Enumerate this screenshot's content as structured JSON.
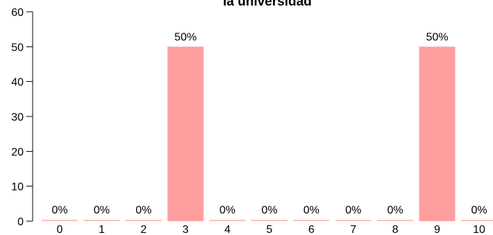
{
  "chart_data": {
    "type": "bar",
    "title": "la universidad",
    "xlabel": "",
    "ylabel": "",
    "categories": [
      "0",
      "1",
      "2",
      "3",
      "4",
      "5",
      "6",
      "7",
      "8",
      "9",
      "10"
    ],
    "values": [
      0,
      0,
      0,
      50,
      0,
      0,
      0,
      0,
      0,
      50,
      0
    ],
    "data_labels": [
      "0%",
      "0%",
      "0%",
      "50%",
      "0%",
      "0%",
      "0%",
      "0%",
      "0%",
      "50%",
      "0%"
    ],
    "ylim": [
      0,
      60
    ],
    "yticks": [
      "0",
      "10",
      "20",
      "30",
      "40",
      "50",
      "60"
    ],
    "grid": false,
    "legend": "none",
    "bar_color": "#ff9e9e",
    "zero_bar_color": "#f9c1bb"
  }
}
